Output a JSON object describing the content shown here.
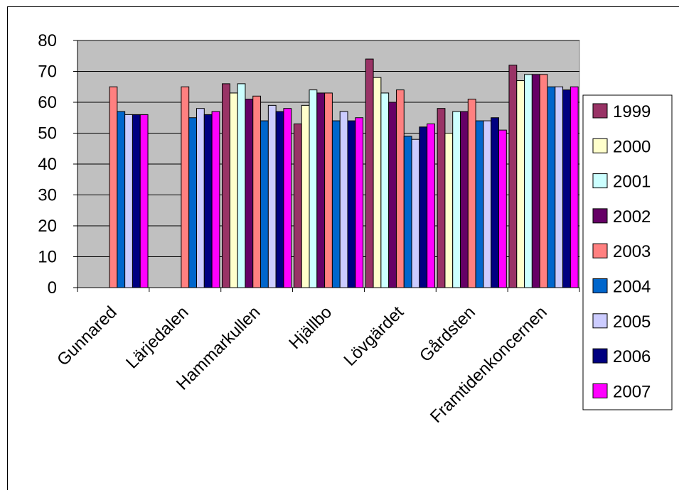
{
  "chart_data": {
    "type": "bar",
    "categories": [
      "Gunnared",
      "Lärjedalen",
      "Hammarkullen",
      "Hjällbo",
      "Lövgärdet",
      "Gårdsten",
      "Framtidenkoncernen"
    ],
    "ylim": [
      0,
      80
    ],
    "yticks": [
      0,
      10,
      20,
      30,
      40,
      50,
      60,
      70,
      80
    ],
    "grid": true,
    "legend_position": "right",
    "plot_background": "#c0c0c0",
    "series": [
      {
        "name": "1999",
        "color": "#993366",
        "values": [
          null,
          null,
          66,
          53,
          74,
          58,
          72
        ]
      },
      {
        "name": "2000",
        "color": "#ffffcc",
        "values": [
          null,
          null,
          63,
          59,
          68,
          50,
          67
        ]
      },
      {
        "name": "2001",
        "color": "#ccffff",
        "values": [
          null,
          null,
          66,
          64,
          63,
          57,
          69
        ]
      },
      {
        "name": "2002",
        "color": "#660066",
        "values": [
          null,
          null,
          61,
          63,
          60,
          57,
          69
        ]
      },
      {
        "name": "2003",
        "color": "#ff8080",
        "values": [
          65,
          65,
          62,
          63,
          64,
          61,
          69
        ]
      },
      {
        "name": "2004",
        "color": "#0066cc",
        "values": [
          57,
          55,
          54,
          54,
          49,
          54,
          65
        ]
      },
      {
        "name": "2005",
        "color": "#ccccff",
        "values": [
          56,
          58,
          59,
          57,
          48,
          54,
          65
        ]
      },
      {
        "name": "2006",
        "color": "#000080",
        "values": [
          56,
          56,
          57,
          54,
          52,
          55,
          64
        ]
      },
      {
        "name": "2007",
        "color": "#ff00ff",
        "values": [
          56,
          57,
          58,
          55,
          53,
          51,
          65
        ]
      }
    ]
  }
}
